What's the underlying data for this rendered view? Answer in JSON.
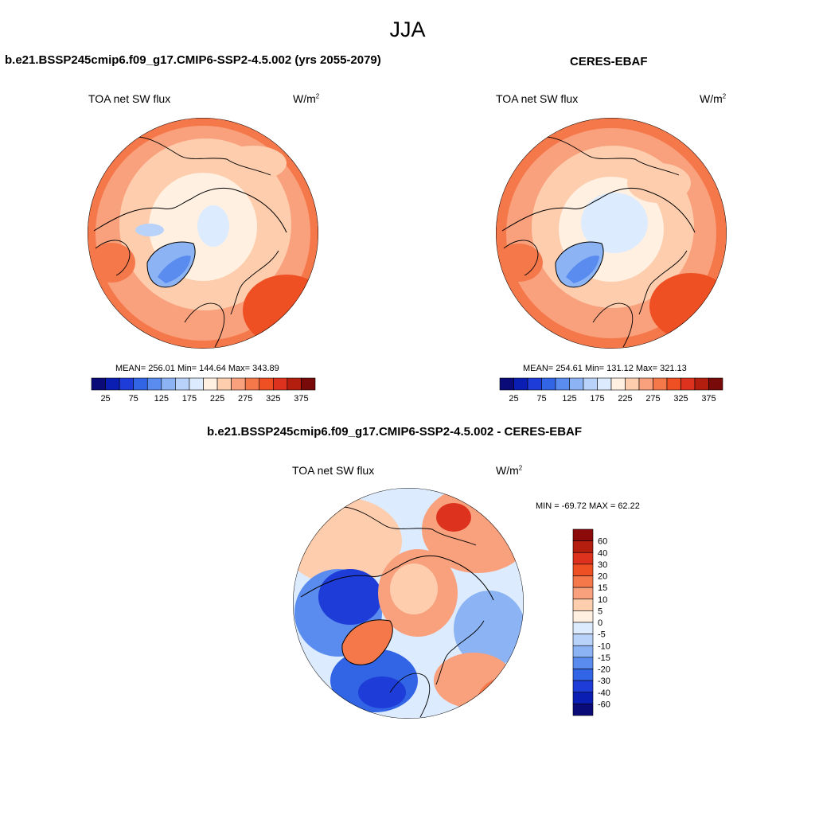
{
  "figure": {
    "title": "JJA"
  },
  "panels": [
    {
      "title": "b.e21.BSSP245cmip6.f09_g17.CMIP6-SSP2-4.5.002 (yrs 2055-2079)",
      "variable": "TOA net SW flux",
      "units": "W/m",
      "units_sup": "2",
      "stats": "MEAN= 256.01  Min= 144.64  Max= 343.89"
    },
    {
      "title": "CERES-EBAF",
      "variable": "TOA net SW flux",
      "units": "W/m",
      "units_sup": "2",
      "stats": "MEAN= 254.61  Min= 131.12  Max= 321.13"
    },
    {
      "title": "b.e21.BSSP245cmip6.f09_g17.CMIP6-SSP2-4.5.002 - CERES-EBAF",
      "variable": "TOA net SW flux",
      "units": "W/m",
      "units_sup": "2",
      "stats": "MIN = -69.72 MAX =  62.22"
    }
  ],
  "chart_data": [
    {
      "type": "heatmap",
      "projection": "north-polar-stereographic",
      "title": "b.e21.BSSP245cmip6.f09_g17.CMIP6-SSP2-4.5.002 (yrs 2055-2079)",
      "variable": "TOA net SW flux",
      "mean": 256.01,
      "min": 144.64,
      "max": 343.89,
      "colorbar": {
        "orientation": "horizontal",
        "levels": [
          25,
          50,
          75,
          100,
          125,
          150,
          175,
          200,
          225,
          250,
          275,
          300,
          325,
          350,
          375
        ],
        "tick_labels": [
          "25",
          "75",
          "125",
          "175",
          "225",
          "275",
          "325",
          "375"
        ],
        "colors": [
          "#0a0a78",
          "#0a1eb4",
          "#1e3cd7",
          "#3264e6",
          "#5a8cf0",
          "#8cb4f5",
          "#b9d2fa",
          "#dcebfd",
          "#fff0e1",
          "#fdcdad",
          "#f9a07d",
          "#f5784b",
          "#ee5023",
          "#dc321e",
          "#b41e0f",
          "#780a0a"
        ]
      }
    },
    {
      "type": "heatmap",
      "projection": "north-polar-stereographic",
      "title": "CERES-EBAF",
      "variable": "TOA net SW flux",
      "mean": 254.61,
      "min": 131.12,
      "max": 321.13,
      "colorbar": {
        "orientation": "horizontal",
        "levels": [
          25,
          50,
          75,
          100,
          125,
          150,
          175,
          200,
          225,
          250,
          275,
          300,
          325,
          350,
          375
        ],
        "tick_labels": [
          "25",
          "75",
          "125",
          "175",
          "225",
          "275",
          "325",
          "375"
        ],
        "colors": [
          "#0a0a78",
          "#0a1eb4",
          "#1e3cd7",
          "#3264e6",
          "#5a8cf0",
          "#8cb4f5",
          "#b9d2fa",
          "#dcebfd",
          "#fff0e1",
          "#fdcdad",
          "#f9a07d",
          "#f5784b",
          "#ee5023",
          "#dc321e",
          "#b41e0f",
          "#780a0a"
        ]
      }
    },
    {
      "type": "heatmap",
      "projection": "north-polar-stereographic",
      "title": "b.e21.BSSP245cmip6.f09_g17.CMIP6-SSP2-4.5.002 - CERES-EBAF",
      "variable": "TOA net SW flux",
      "min": -69.72,
      "max": 62.22,
      "colorbar": {
        "orientation": "vertical",
        "levels": [
          60,
          40,
          30,
          20,
          15,
          10,
          5,
          0,
          -5,
          -10,
          -15,
          -20,
          -30,
          -40,
          -60
        ],
        "tick_labels": [
          "60",
          "40",
          "30",
          "20",
          "15",
          "10",
          "5",
          "0",
          "-5",
          "-10",
          "-15",
          "-20",
          "-30",
          "-40",
          "-60"
        ],
        "colors": [
          "#8c0a0a",
          "#b41e0f",
          "#dc321e",
          "#ee5023",
          "#f5784b",
          "#f9a07d",
          "#fdcdad",
          "#fff0e1",
          "#dcebfd",
          "#b9d2fa",
          "#8cb4f5",
          "#5a8cf0",
          "#3264e6",
          "#1e3cd7",
          "#0a1eb4",
          "#0a0a78"
        ]
      }
    }
  ]
}
